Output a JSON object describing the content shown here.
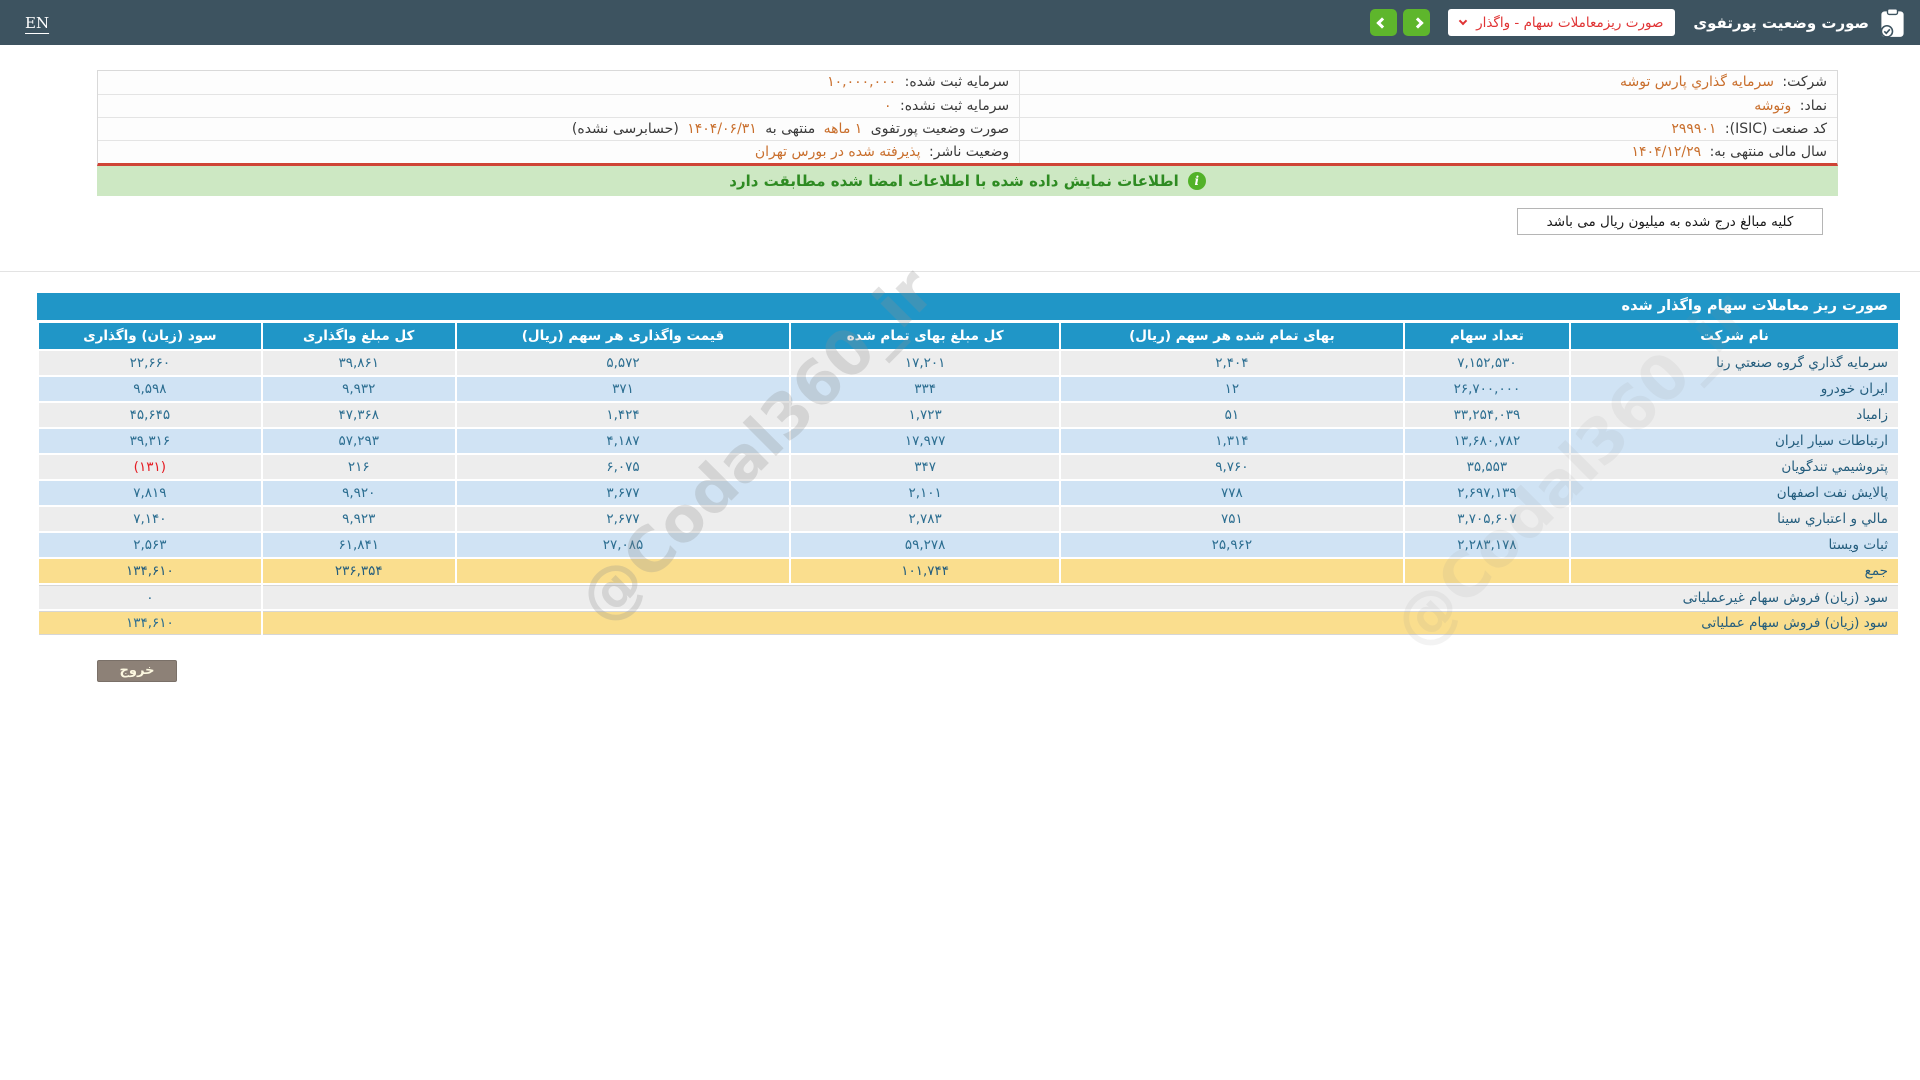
{
  "header": {
    "title": "صورت وضعیت پورتفوی",
    "dropdown_value": "صورت ریزمعاملات سهام - واگذار",
    "lang_link": "EN"
  },
  "company_info": {
    "company_label": "شرکت:",
    "company_value": "سرمایه گذاري پارس توشه",
    "registered_capital_label": "سرمایه ثبت شده:",
    "registered_capital_value": "۱۰,۰۰۰,۰۰۰",
    "symbol_label": "نماد:",
    "symbol_value": "وتوشه",
    "unregistered_capital_label": "سرمایه ثبت نشده:",
    "unregistered_capital_value": "۰",
    "isic_label": "کد صنعت (ISIC):",
    "isic_value": "۲۹۹۹۰۱",
    "portfolio_statement_label": "صورت وضعیت پورتفوی",
    "portfolio_period_value": "۱ ماهه",
    "portfolio_ending_label": "منتهی به",
    "portfolio_ending_date": "۱۴۰۴/۰۶/۳۱",
    "portfolio_audit_note": "(حسابرسی نشده)",
    "fiscal_year_label": "سال مالی منتهی به:",
    "fiscal_year_value": "۱۴۰۴/۱۲/۲۹",
    "issuer_status_label": "وضعیت ناشر:",
    "issuer_status_value": "پذیرفته شده در بورس تهران"
  },
  "banner": {
    "text": "اطلاعات نمایش داده شده با اطلاعات امضا شده مطابقت دارد"
  },
  "notes": {
    "amounts_note": "کلیه مبالغ درج شده به میلیون ریال می باشد"
  },
  "table": {
    "title": "صورت ریز معاملات سهام واگذار شده",
    "columns": [
      "نام شرکت",
      "تعداد سهام",
      "بهای تمام شده هر سهم (ریال)",
      "کل مبلغ بهای تمام شده",
      "قیمت واگذاری هر سهم (ریال)",
      "کل مبلغ واگذاری",
      "سود (زیان) واگذاری"
    ],
    "rows": [
      {
        "company": "سرمایه گذاري گروه صنعتي رنا",
        "shares": "۷,۱۵۲,۵۳۰",
        "cost_per_share": "۲,۴۰۴",
        "total_cost": "۱۷,۲۰۱",
        "transfer_price_per_share": "۵,۵۷۲",
        "total_transfer": "۳۹,۸۶۱",
        "profit": "۲۲,۶۶۰",
        "profit_negative": false
      },
      {
        "company": "ایران خودرو",
        "shares": "۲۶,۷۰۰,۰۰۰",
        "cost_per_share": "۱۲",
        "total_cost": "۳۳۴",
        "transfer_price_per_share": "۳۷۱",
        "total_transfer": "۹,۹۳۲",
        "profit": "۹,۵۹۸",
        "profit_negative": false
      },
      {
        "company": "زامیاد",
        "shares": "۳۳,۲۵۴,۰۳۹",
        "cost_per_share": "۵۱",
        "total_cost": "۱,۷۲۳",
        "transfer_price_per_share": "۱,۴۲۴",
        "total_transfer": "۴۷,۳۶۸",
        "profit": "۴۵,۶۴۵",
        "profit_negative": false
      },
      {
        "company": "ارتباطات سیار ایران",
        "shares": "۱۳,۶۸۰,۷۸۲",
        "cost_per_share": "۱,۳۱۴",
        "total_cost": "۱۷,۹۷۷",
        "transfer_price_per_share": "۴,۱۸۷",
        "total_transfer": "۵۷,۲۹۳",
        "profit": "۳۹,۳۱۶",
        "profit_negative": false
      },
      {
        "company": "پتروشیمي تندگویان",
        "shares": "۳۵,۵۵۳",
        "cost_per_share": "۹,۷۶۰",
        "total_cost": "۳۴۷",
        "transfer_price_per_share": "۶,۰۷۵",
        "total_transfer": "۲۱۶",
        "profit": "(۱۳۱)",
        "profit_negative": true
      },
      {
        "company": "پالایش نفت اصفهان",
        "shares": "۲,۶۹۷,۱۳۹",
        "cost_per_share": "۷۷۸",
        "total_cost": "۲,۱۰۱",
        "transfer_price_per_share": "۳,۶۷۷",
        "total_transfer": "۹,۹۲۰",
        "profit": "۷,۸۱۹",
        "profit_negative": false
      },
      {
        "company": "مالي و اعتباري سینا",
        "shares": "۳,۷۰۵,۶۰۷",
        "cost_per_share": "۷۵۱",
        "total_cost": "۲,۷۸۳",
        "transfer_price_per_share": "۲,۶۷۷",
        "total_transfer": "۹,۹۲۳",
        "profit": "۷,۱۴۰",
        "profit_negative": false
      },
      {
        "company": "ثبات ویستا",
        "shares": "۲,۲۸۳,۱۷۸",
        "cost_per_share": "۲۵,۹۶۲",
        "total_cost": "۵۹,۲۷۸",
        "transfer_price_per_share": "۲۷,۰۸۵",
        "total_transfer": "۶۱,۸۴۱",
        "profit": "۲,۵۶۳",
        "profit_negative": false
      }
    ],
    "total_row": {
      "label": "جمع",
      "total_cost": "۱۰۱,۷۴۴",
      "total_transfer": "۲۳۶,۳۵۴",
      "profit": "۱۳۴,۶۱۰"
    },
    "extra_rows": [
      {
        "label": "سود (زیان) فروش سهام غیرعملیاتی",
        "value": "۰",
        "highlight": false
      },
      {
        "label": "سود (زیان) فروش سهام عملیاتی",
        "value": "۱۳۴,۶۱۰",
        "highlight": true
      }
    ]
  },
  "footer": {
    "exit_button": "خروج"
  },
  "watermark": "@Codal360_ir",
  "colors": {
    "topbar": "#3d5360",
    "accent_orange": "#c96f2d",
    "table_header_blue": "#2096c7",
    "row_blue": "#d0e3f4",
    "row_gray": "#ededed",
    "total_yellow": "#fade8e",
    "banner_green": "#cde8c3",
    "negative_red": "#e51c23",
    "nav_green": "#5eb62c",
    "red_divider": "#cf4436"
  }
}
